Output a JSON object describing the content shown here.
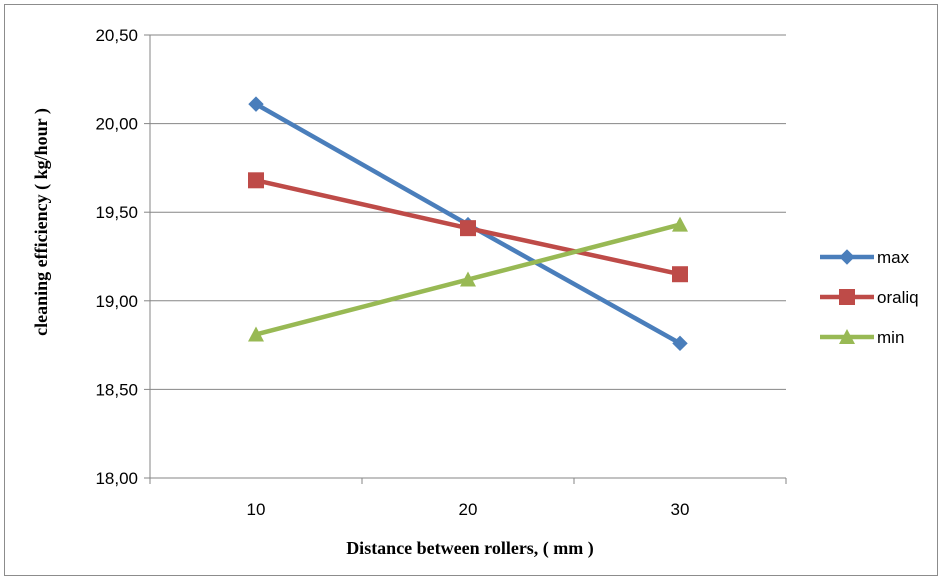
{
  "chart_data": {
    "type": "line",
    "xlabel": "Distance between rollers, ( mm )",
    "ylabel": "cleaning efficiency ( kg/hour )",
    "categories": [
      "10",
      "20",
      "30"
    ],
    "ylim": [
      18.0,
      20.5
    ],
    "yticks": [
      "18,00",
      "18,50",
      "19,00",
      "19,50",
      "20,00",
      "20,50"
    ],
    "ytick_values": [
      18.0,
      18.5,
      19.0,
      19.5,
      20.0,
      20.5
    ],
    "grid": true,
    "legend_position": "right",
    "series": [
      {
        "name": "max",
        "values": [
          20.11,
          19.43,
          18.76
        ],
        "color": "#4a7ebb",
        "marker": "diamond"
      },
      {
        "name": "oraliq",
        "values": [
          19.68,
          19.41,
          19.15
        ],
        "color": "#be4b48",
        "marker": "square"
      },
      {
        "name": "min",
        "values": [
          18.81,
          19.12,
          19.43
        ],
        "color": "#98b954",
        "marker": "triangle"
      }
    ]
  }
}
